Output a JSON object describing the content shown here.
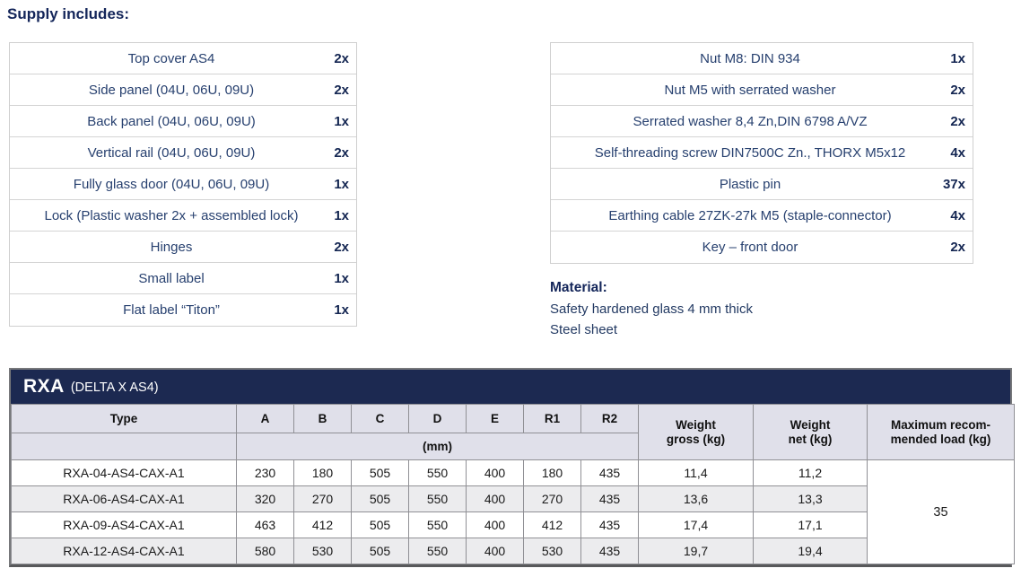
{
  "page": {
    "title": "Supply includes:"
  },
  "supply_left": {
    "items": [
      {
        "label": "Top cover AS4",
        "qty": "2x"
      },
      {
        "label": "Side panel (04U, 06U, 09U)",
        "qty": "2x"
      },
      {
        "label": "Back panel (04U, 06U, 09U)",
        "qty": "1x"
      },
      {
        "label": "Vertical rail (04U, 06U, 09U)",
        "qty": "2x"
      },
      {
        "label": "Fully glass door (04U, 06U, 09U)",
        "qty": "1x"
      },
      {
        "label": "Lock (Plastic washer 2x + assembled lock)",
        "qty": "1x"
      },
      {
        "label": "Hinges",
        "qty": "2x"
      },
      {
        "label": "Small label",
        "qty": "1x"
      },
      {
        "label": "Flat label “Titon”",
        "qty": "1x"
      }
    ]
  },
  "supply_right": {
    "items": [
      {
        "label": "Nut M8: DIN 934",
        "qty": "1x"
      },
      {
        "label": "Nut M5 with serrated washer",
        "qty": "2x"
      },
      {
        "label": "Serrated washer 8,4 Zn,DIN 6798 A/VZ",
        "qty": "2x"
      },
      {
        "label": "Self-threading screw DIN7500C Zn., THORX M5x12",
        "qty": "4x"
      },
      {
        "label": "Plastic pin",
        "qty": "37x"
      },
      {
        "label": "Earthing cable 27ZK-27k M5 (staple-connector)",
        "qty": "4x"
      },
      {
        "label": "Key – front door",
        "qty": "2x"
      }
    ]
  },
  "material": {
    "heading": "Material:",
    "lines": [
      "Safety hardened glass 4 mm thick",
      "Steel sheet"
    ]
  },
  "spec_table": {
    "band_title": "RXA",
    "band_subtitle": "(DELTA X AS4)",
    "type_header": "Type",
    "dim_headers": [
      "A",
      "B",
      "C",
      "D",
      "E",
      "R1",
      "R2"
    ],
    "unit_label": "(mm)",
    "weight_gross_header": "Weight\ngross (kg)",
    "weight_net_header": "Weight\nnet (kg)",
    "max_load_header": "Maximum recom-\nmended load (kg)",
    "rows": [
      {
        "type": "RXA-04-AS4-CAX-A1",
        "dims": [
          "230",
          "180",
          "505",
          "550",
          "400",
          "180",
          "435"
        ],
        "gross": "11,4",
        "net": "11,2"
      },
      {
        "type": "RXA-06-AS4-CAX-A1",
        "dims": [
          "320",
          "270",
          "505",
          "550",
          "400",
          "270",
          "435"
        ],
        "gross": "13,6",
        "net": "13,3"
      },
      {
        "type": "RXA-09-AS4-CAX-A1",
        "dims": [
          "463",
          "412",
          "505",
          "550",
          "400",
          "412",
          "435"
        ],
        "gross": "17,4",
        "net": "17,1"
      },
      {
        "type": "RXA-12-AS4-CAX-A1",
        "dims": [
          "580",
          "530",
          "505",
          "550",
          "400",
          "530",
          "435"
        ],
        "gross": "19,7",
        "net": "19,4"
      }
    ],
    "max_load_value": "35"
  },
  "colors": {
    "band_navy": "#1c2951",
    "heading_navy": "#14265a",
    "item_text": "#27406f",
    "header_lavender": "#e0e0ea",
    "row_stripe": "#ececee",
    "grid_gray": "#909095"
  }
}
